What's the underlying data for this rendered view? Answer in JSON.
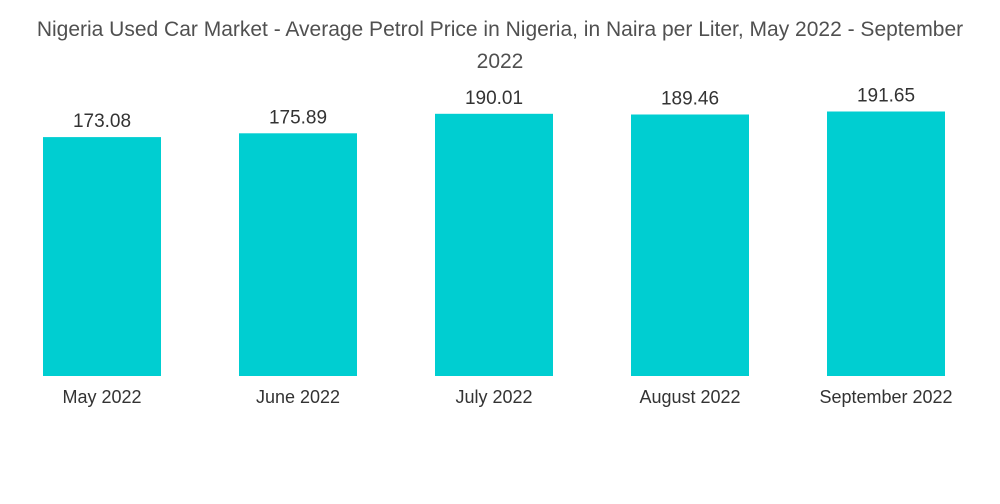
{
  "chart_data": {
    "type": "bar",
    "title": "Nigeria Used Car Market - Average Petrol Price in Nigeria, in Naira per Liter, May 2022 - September 2022",
    "categories": [
      "May 2022",
      "June 2022",
      "July 2022",
      "August 2022",
      "September 2022"
    ],
    "values": [
      173.08,
      175.89,
      190.01,
      189.46,
      191.65
    ],
    "value_labels": [
      "173.08",
      "175.89",
      "190.01",
      "189.46",
      "191.65"
    ],
    "xlabel": "",
    "ylabel": "",
    "ylim": [
      0,
      200
    ],
    "grid": false,
    "legend": "none",
    "bar_color": "#00CED1"
  }
}
